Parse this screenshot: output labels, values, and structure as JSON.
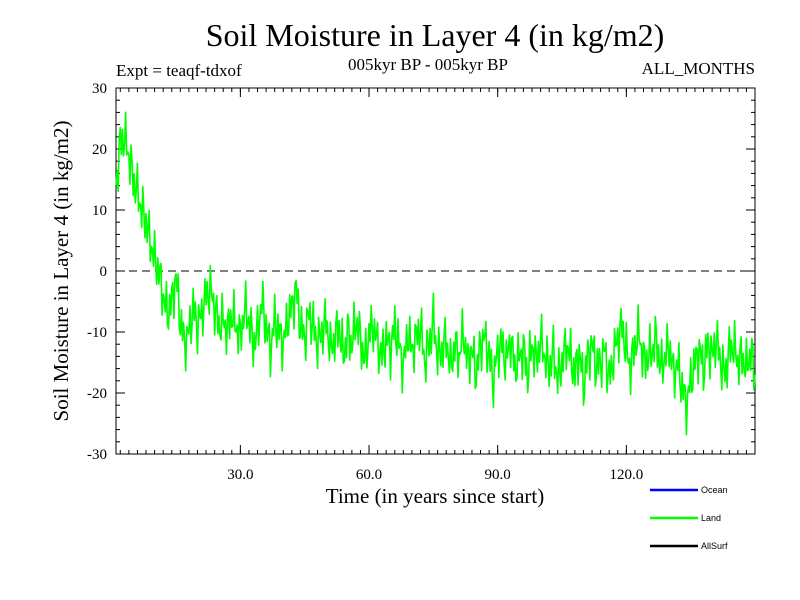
{
  "chart_data": {
    "type": "line",
    "title": "Soil Moisture in Layer 4 (in kg/m2)",
    "subtitle_left": "Expt = teaqf-tdxof",
    "subtitle_center": "005kyr BP - 005kyr BP",
    "subtitle_right": "ALL_MONTHS",
    "xlabel": "Time (in years since start)",
    "ylabel": "Soil Moisture in Layer 4 (in kg/m2)",
    "xlim": [
      1,
      150
    ],
    "ylim": [
      -30,
      30
    ],
    "x_ticks": [
      30,
      60,
      90,
      120
    ],
    "x_tick_labels": [
      "30.0",
      "60.0",
      "90.0",
      "120.0"
    ],
    "y_ticks": [
      -30,
      -20,
      -10,
      0,
      10,
      20,
      30
    ],
    "y_tick_labels": [
      "-30",
      "-20",
      "-10",
      "0",
      "10",
      "20",
      "30"
    ],
    "zero_line": true,
    "legend_position": "bottom-right",
    "series": [
      {
        "name": "Ocean",
        "color": "#0000ff",
        "values": []
      },
      {
        "name": "Land",
        "color": "#00ff00",
        "x_start": 1,
        "x_step": 1,
        "values": [
          14,
          21,
          22,
          19,
          15,
          13,
          10,
          8,
          5,
          2,
          0,
          -4,
          -7,
          -5,
          -1,
          -8,
          -12,
          -10,
          -6,
          -9,
          -7,
          -4,
          -3,
          -6,
          -9,
          -8,
          -10,
          -7,
          -9,
          -11,
          -6,
          -8,
          -12,
          -10,
          -5,
          -9,
          -13,
          -8,
          -10,
          -12,
          -8,
          -6,
          -3,
          -9,
          -11,
          -7,
          -9,
          -12,
          -10,
          -8,
          -13,
          -11,
          -9,
          -14,
          -10,
          -12,
          -8,
          -11,
          -15,
          -10,
          -9,
          -12,
          -14,
          -11,
          -13,
          -9,
          -12,
          -16,
          -10,
          -13,
          -11,
          -9,
          -15,
          -12,
          -8,
          -14,
          -13,
          -11,
          -16,
          -12,
          -14,
          -10,
          -15,
          -13,
          -17,
          -12,
          -11,
          -14,
          -18,
          -13,
          -12,
          -15,
          -11,
          -16,
          -14,
          -13,
          -17,
          -12,
          -15,
          -11,
          -14,
          -16,
          -13,
          -18,
          -15,
          -12,
          -14,
          -17,
          -13,
          -19,
          -14,
          -12,
          -16,
          -15,
          -13,
          -18,
          -14,
          -11,
          -9,
          -13,
          -16,
          -12,
          -10,
          -15,
          -14,
          -13,
          -11,
          -16,
          -14,
          -12,
          -17,
          -15,
          -19,
          -22,
          -18,
          -15,
          -13,
          -16,
          -12,
          -14,
          -11,
          -15,
          -17,
          -13,
          -12,
          -15,
          -14,
          -16,
          -13,
          -17
        ]
      },
      {
        "name": "AllSurf",
        "color": "#000000",
        "values": []
      }
    ]
  }
}
